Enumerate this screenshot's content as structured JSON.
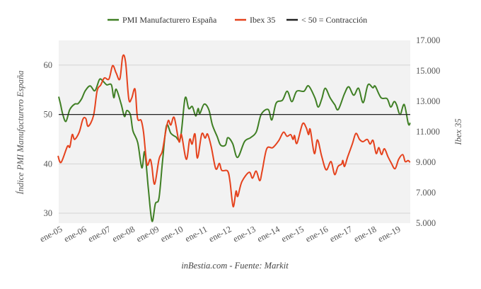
{
  "chart_data": {
    "type": "line",
    "title": "",
    "footer": "inBestia.com - Fuente: Markit",
    "xlabel": "",
    "ylabel": "Índice PMI Manufacturero España",
    "y2label": "Ibex 35",
    "xlim": [
      2005.0,
      2019.55
    ],
    "ylim": [
      28,
      65
    ],
    "y2lim": [
      5000,
      17000
    ],
    "yticks": [
      30,
      40,
      50,
      60
    ],
    "y2ticks": [
      "5.000",
      "7.000",
      "9.000",
      "11.000",
      "13.000",
      "15.000",
      "17.000"
    ],
    "y2tick_values": [
      5000,
      7000,
      9000,
      11000,
      13000,
      15000,
      17000
    ],
    "xticks": [
      "ene-05",
      "ene-06",
      "ene-07",
      "ene-08",
      "ene-09",
      "ene-10",
      "ene-11",
      "ene-12",
      "ene-13",
      "ene-14",
      "ene-15",
      "ene-16",
      "ene-17",
      "ene-18",
      "ene-19"
    ],
    "xtick_values": [
      2005,
      2006,
      2007,
      2008,
      2009,
      2010,
      2011,
      2012,
      2013,
      2014,
      2015,
      2016,
      2017,
      2018,
      2019
    ],
    "grid": true,
    "legend_position": "top",
    "reference_line": {
      "name": "< 50 = Contracción",
      "value": 50,
      "color": "#222222"
    },
    "series": [
      {
        "name": "PMI Manufacturero España",
        "axis": "left",
        "color": "#3f7f24",
        "x": [
          2005.0,
          2005.07,
          2005.17,
          2005.3,
          2005.46,
          2005.66,
          2005.8,
          2005.95,
          2006.1,
          2006.3,
          2006.5,
          2006.69,
          2006.84,
          2006.99,
          2007.18,
          2007.28,
          2007.38,
          2007.58,
          2007.72,
          2007.82,
          2007.97,
          2008.07,
          2008.27,
          2008.44,
          2008.56,
          2008.71,
          2008.86,
          2009.0,
          2009.15,
          2009.3,
          2009.46,
          2009.64,
          2009.84,
          2010.04,
          2010.23,
          2010.38,
          2010.53,
          2010.67,
          2010.77,
          2010.84,
          2011.02,
          2011.21,
          2011.36,
          2011.56,
          2011.7,
          2011.9,
          2012.0,
          2012.2,
          2012.4,
          2012.69,
          2012.94,
          2013.18,
          2013.38,
          2013.67,
          2013.82,
          2014.0,
          2014.26,
          2014.46,
          2014.65,
          2014.85,
          2015.15,
          2015.34,
          2015.6,
          2015.74,
          2015.89,
          2016.03,
          2016.23,
          2016.42,
          2016.57,
          2016.82,
          2017.0,
          2017.21,
          2017.41,
          2017.6,
          2017.8,
          2018.0,
          2018.1,
          2018.34,
          2018.59,
          2018.74,
          2018.88,
          2018.98,
          2019.13,
          2019.3,
          2019.47,
          2019.55
        ],
        "values": [
          53.6,
          52.2,
          50.0,
          48.6,
          51.0,
          52.1,
          52.2,
          53.2,
          54.8,
          55.8,
          54.8,
          57.1,
          56.7,
          56.0,
          56.0,
          53.4,
          55.1,
          52.2,
          49.6,
          50.8,
          49.9,
          46.7,
          44.3,
          39.2,
          42.4,
          35.0,
          28.4,
          31.9,
          33.1,
          40.7,
          47.7,
          46.2,
          45.5,
          45.3,
          53.3,
          51.2,
          51.6,
          49.7,
          51.2,
          50.2,
          52.1,
          51.0,
          47.9,
          45.5,
          43.8,
          43.8,
          45.3,
          44.1,
          41.3,
          44.5,
          45.3,
          46.5,
          50.0,
          51.0,
          48.9,
          52.3,
          52.9,
          54.7,
          52.6,
          54.7,
          54.7,
          55.8,
          53.4,
          51.5,
          53.2,
          55.3,
          53.4,
          52.0,
          51.0,
          54.1,
          55.6,
          53.9,
          55.3,
          52.4,
          56.0,
          55.4,
          55.7,
          53.4,
          53.2,
          51.5,
          52.6,
          52.0,
          50.0,
          52.0,
          48.1,
          48.3
        ]
      },
      {
        "name": "Ibex 35",
        "axis": "right",
        "color": "#e5421d",
        "x": [
          2004.97,
          2005.1,
          2005.36,
          2005.46,
          2005.56,
          2005.66,
          2005.85,
          2006.0,
          2006.12,
          2006.22,
          2006.44,
          2006.59,
          2006.74,
          2006.89,
          2007.08,
          2007.23,
          2007.38,
          2007.53,
          2007.65,
          2007.77,
          2007.9,
          2008.02,
          2008.16,
          2008.26,
          2008.41,
          2008.51,
          2008.65,
          2008.78,
          2008.85,
          2008.97,
          2009.15,
          2009.29,
          2009.44,
          2009.54,
          2009.64,
          2009.78,
          2009.98,
          2010.08,
          2010.28,
          2010.42,
          2010.52,
          2010.64,
          2010.74,
          2010.92,
          2011.06,
          2011.16,
          2011.31,
          2011.5,
          2011.65,
          2011.75,
          2011.99,
          2012.09,
          2012.22,
          2012.34,
          2012.41,
          2012.58,
          2012.88,
          2013.02,
          2013.17,
          2013.32,
          2013.42,
          2013.61,
          2013.86,
          2014.11,
          2014.3,
          2014.45,
          2014.6,
          2014.7,
          2014.76,
          2014.86,
          2015.09,
          2015.24,
          2015.34,
          2015.41,
          2015.58,
          2015.71,
          2015.88,
          2016.07,
          2016.27,
          2016.42,
          2016.56,
          2016.71,
          2016.76,
          2016.83,
          2016.96,
          2017.15,
          2017.3,
          2017.45,
          2017.59,
          2017.77,
          2017.89,
          2018.01,
          2018.14,
          2018.25,
          2018.36,
          2018.48,
          2018.63,
          2018.76,
          2018.92,
          2019.07,
          2019.24,
          2019.34,
          2019.46,
          2019.54
        ],
        "values": [
          9420,
          8990,
          10040,
          10000,
          10815,
          10500,
          10970,
          11825,
          11870,
          11360,
          12060,
          13685,
          14070,
          14535,
          14460,
          15340,
          14850,
          14460,
          15960,
          15545,
          13140,
          13210,
          13790,
          11900,
          11750,
          10970,
          8880,
          9190,
          8800,
          7560,
          9190,
          9730,
          11130,
          11745,
          11440,
          11930,
          10350,
          10815,
          9190,
          10500,
          10190,
          10850,
          9270,
          10850,
          10580,
          10850,
          10040,
          8570,
          8920,
          8460,
          8420,
          7715,
          6085,
          7100,
          6760,
          7715,
          8340,
          7950,
          8420,
          7790,
          8420,
          9885,
          9960,
          10430,
          10970,
          10700,
          10815,
          10500,
          10750,
          10240,
          11515,
          11280,
          10815,
          11150,
          9570,
          10470,
          9420,
          8500,
          9040,
          8190,
          8720,
          8880,
          9110,
          8720,
          9350,
          10190,
          10890,
          10500,
          10350,
          10500,
          10190,
          10430,
          9570,
          9960,
          9500,
          9885,
          9350,
          8960,
          8570,
          9190,
          9500,
          9040,
          9110,
          8990
        ]
      }
    ]
  }
}
